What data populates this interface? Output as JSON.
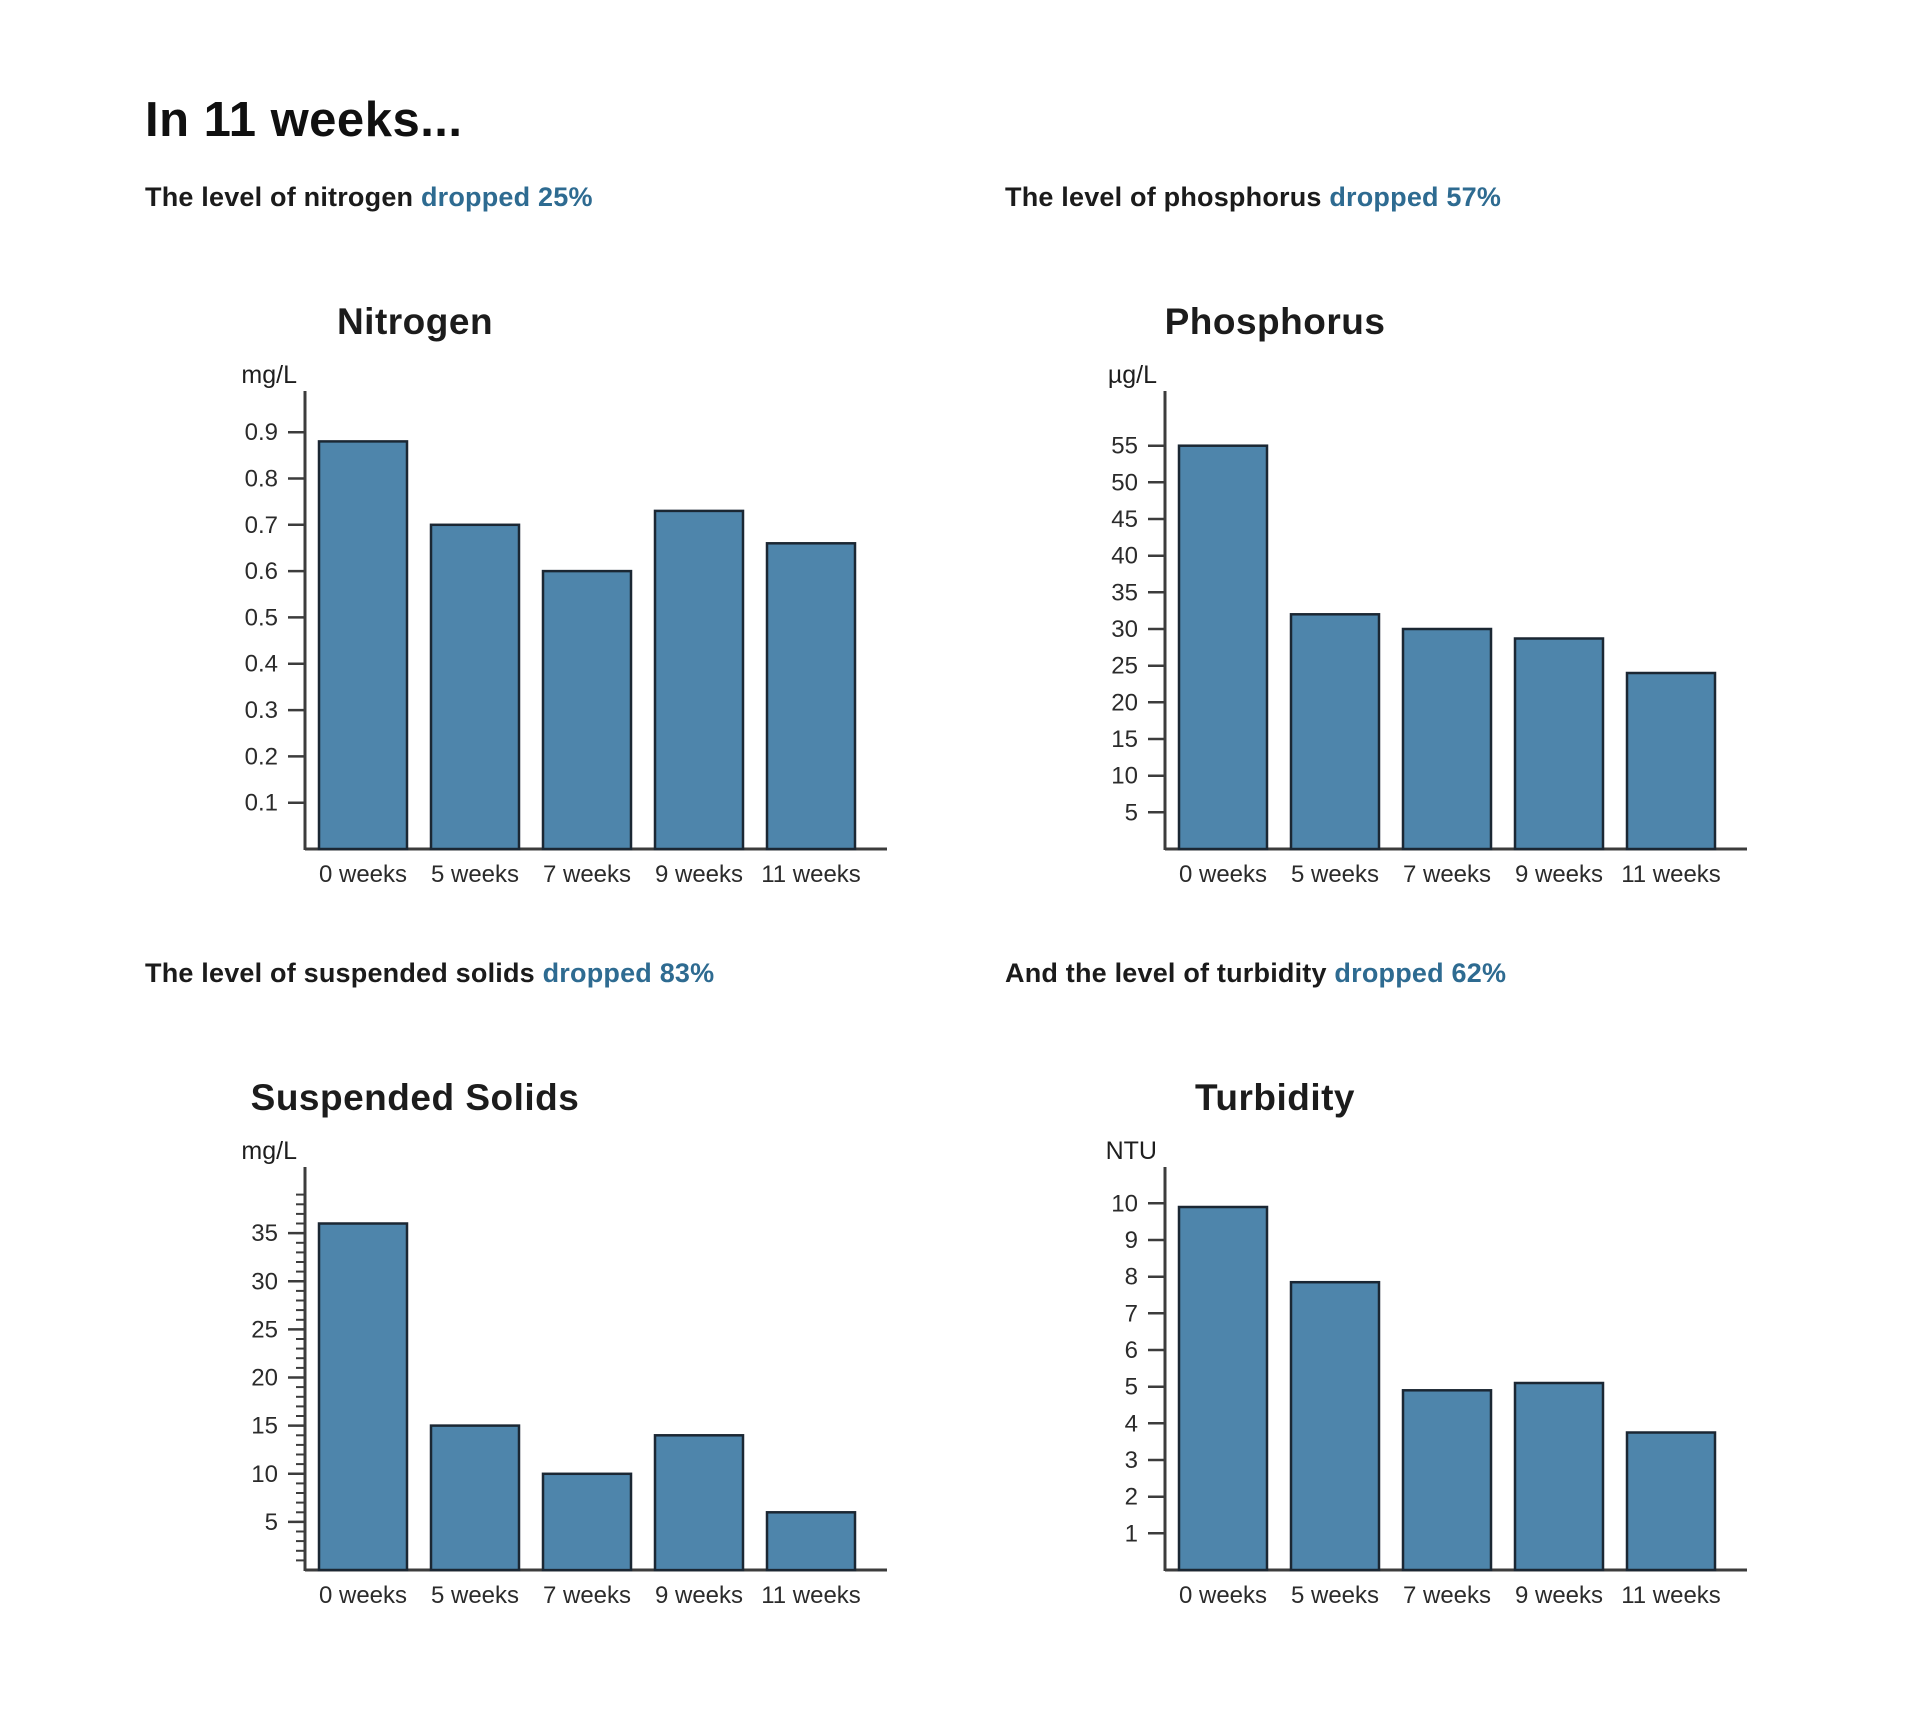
{
  "page": {
    "title": "In 11 weeks...",
    "accent_color": "#2e6b91",
    "bar_fill": "#4e85ab",
    "bar_stroke": "#1b2733",
    "axis_color": "#3c3c3c"
  },
  "subtitles": [
    {
      "text": "The level of nitrogen",
      "highlight": "dropped 25%"
    },
    {
      "text": "The level of phosphorus",
      "highlight": "dropped 57%"
    },
    {
      "text": "The level of suspended solids",
      "highlight": "dropped 83%"
    },
    {
      "text": "And the level of turbidity",
      "highlight": "dropped 62%"
    }
  ],
  "chart_data": [
    {
      "type": "bar",
      "title": "Nitrogen",
      "ylabel": "mg/L",
      "xlabel": "",
      "categories": [
        "0 weeks",
        "5 weeks",
        "7 weeks",
        "9 weeks",
        "11 weeks"
      ],
      "values": [
        0.88,
        0.7,
        0.6,
        0.73,
        0.66
      ],
      "yticks": [
        0.1,
        0.2,
        0.3,
        0.4,
        0.5,
        0.6,
        0.7,
        0.8,
        0.9
      ],
      "ytick_labels": [
        "0.1",
        "0.2",
        "0.3",
        "0.4",
        "0.5",
        "0.6",
        "0.7",
        "0.8",
        "0.9"
      ],
      "ylim": [
        0,
        0.95
      ],
      "grid": false,
      "legend": null
    },
    {
      "type": "bar",
      "title": "Phosphorus",
      "ylabel": "µg/L",
      "xlabel": "",
      "categories": [
        "0 weeks",
        "5 weeks",
        "7 weeks",
        "9 weeks",
        "11 weeks"
      ],
      "values": [
        55,
        32,
        30,
        28.7,
        24
      ],
      "yticks": [
        5,
        10,
        15,
        20,
        25,
        30,
        35,
        40,
        45,
        50,
        55
      ],
      "ytick_labels": [
        "5",
        "10",
        "15",
        "20",
        "25",
        "30",
        "35",
        "40",
        "45",
        "50",
        "55"
      ],
      "ylim": [
        0,
        60
      ],
      "grid": false,
      "legend": null
    },
    {
      "type": "bar",
      "title": "Suspended Solids",
      "ylabel": "mg/L",
      "xlabel": "",
      "categories": [
        "0 weeks",
        "5 weeks",
        "7 weeks",
        "9 weeks",
        "11 weeks"
      ],
      "values": [
        36,
        15,
        10,
        14,
        6
      ],
      "yticks": [
        5,
        10,
        15,
        20,
        25,
        30,
        35
      ],
      "ytick_labels": [
        "5",
        "10",
        "15",
        "20",
        "25",
        "30",
        "35"
      ],
      "minor_ticks": {
        "step": 1,
        "max": 39
      },
      "ylim": [
        0,
        40
      ],
      "grid": false,
      "legend": null
    },
    {
      "type": "bar",
      "title": "Turbidity",
      "ylabel": "NTU",
      "xlabel": "",
      "categories": [
        "0 weeks",
        "5 weeks",
        "7 weeks",
        "9 weeks",
        "11 weeks"
      ],
      "values": [
        9.9,
        7.85,
        4.9,
        5.1,
        3.75
      ],
      "yticks": [
        1,
        2,
        3,
        4,
        5,
        6,
        7,
        8,
        9,
        10
      ],
      "ytick_labels": [
        "1",
        "2",
        "3",
        "4",
        "5",
        "6",
        "7",
        "8",
        "9",
        "10"
      ],
      "ylim": [
        0,
        10.5
      ],
      "grid": false,
      "legend": null
    }
  ]
}
